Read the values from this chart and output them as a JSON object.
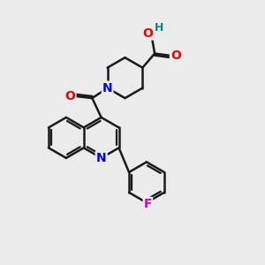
{
  "background_color": "#ebebeb",
  "bond_color": "#1a1a1a",
  "bond_width": 1.8,
  "atom_colors": {
    "N": "#0000ee",
    "O": "#ee0000",
    "F": "#cc00cc",
    "H": "#008888",
    "C": "#1a1a1a"
  },
  "font_size": 10,
  "figsize": [
    3.0,
    3.0
  ],
  "dpi": 100
}
